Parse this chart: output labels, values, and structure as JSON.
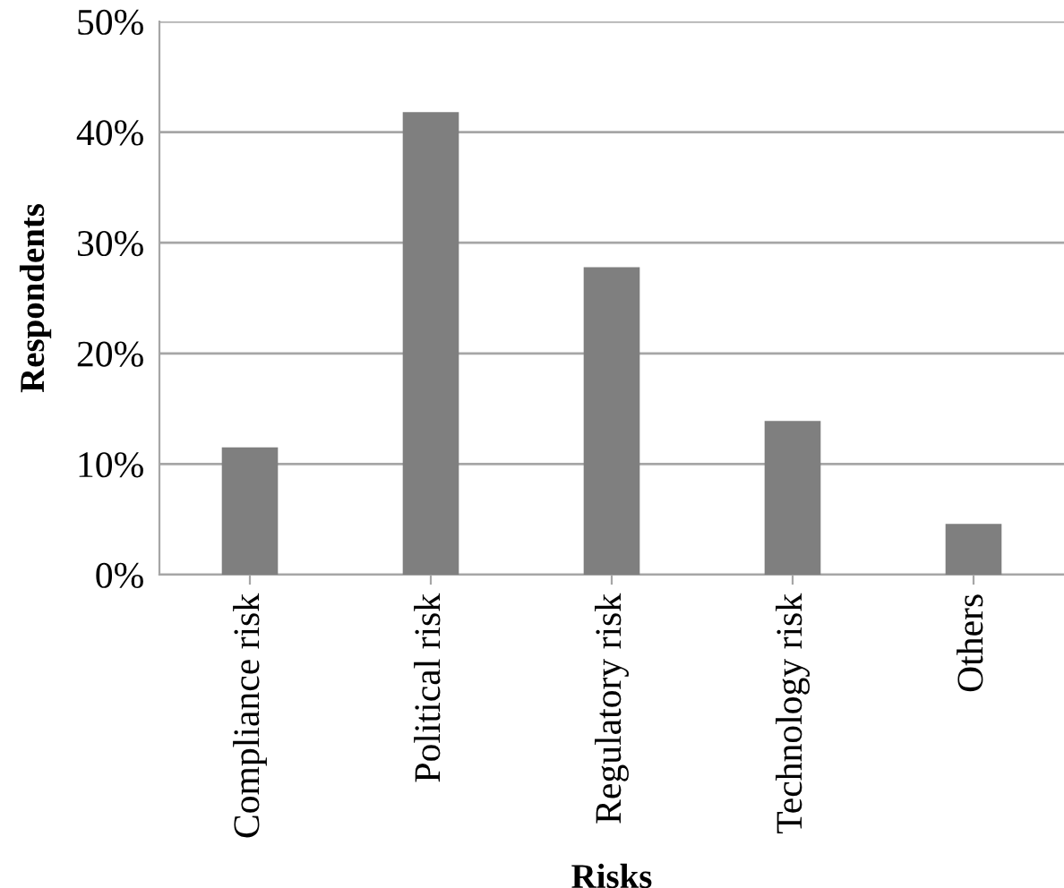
{
  "chart_data": {
    "type": "bar",
    "xlabel": "Risks",
    "ylabel": "Respondents",
    "categories": [
      "Compliance risk",
      "Political risk",
      "Regulatory risk",
      "Technology risk",
      "Others"
    ],
    "values": [
      11.5,
      41.8,
      27.8,
      13.9,
      4.6
    ],
    "color": "#7f7f7f",
    "ylim": [
      0,
      50
    ],
    "yticks": [
      {
        "value": 0,
        "label": "0%"
      },
      {
        "value": 10,
        "label": "10%"
      },
      {
        "value": 20,
        "label": "20%"
      },
      {
        "value": 30,
        "label": "30%"
      },
      {
        "value": 40,
        "label": "40%"
      },
      {
        "value": 50,
        "label": "50%"
      }
    ],
    "grid": "y",
    "legend": false
  }
}
